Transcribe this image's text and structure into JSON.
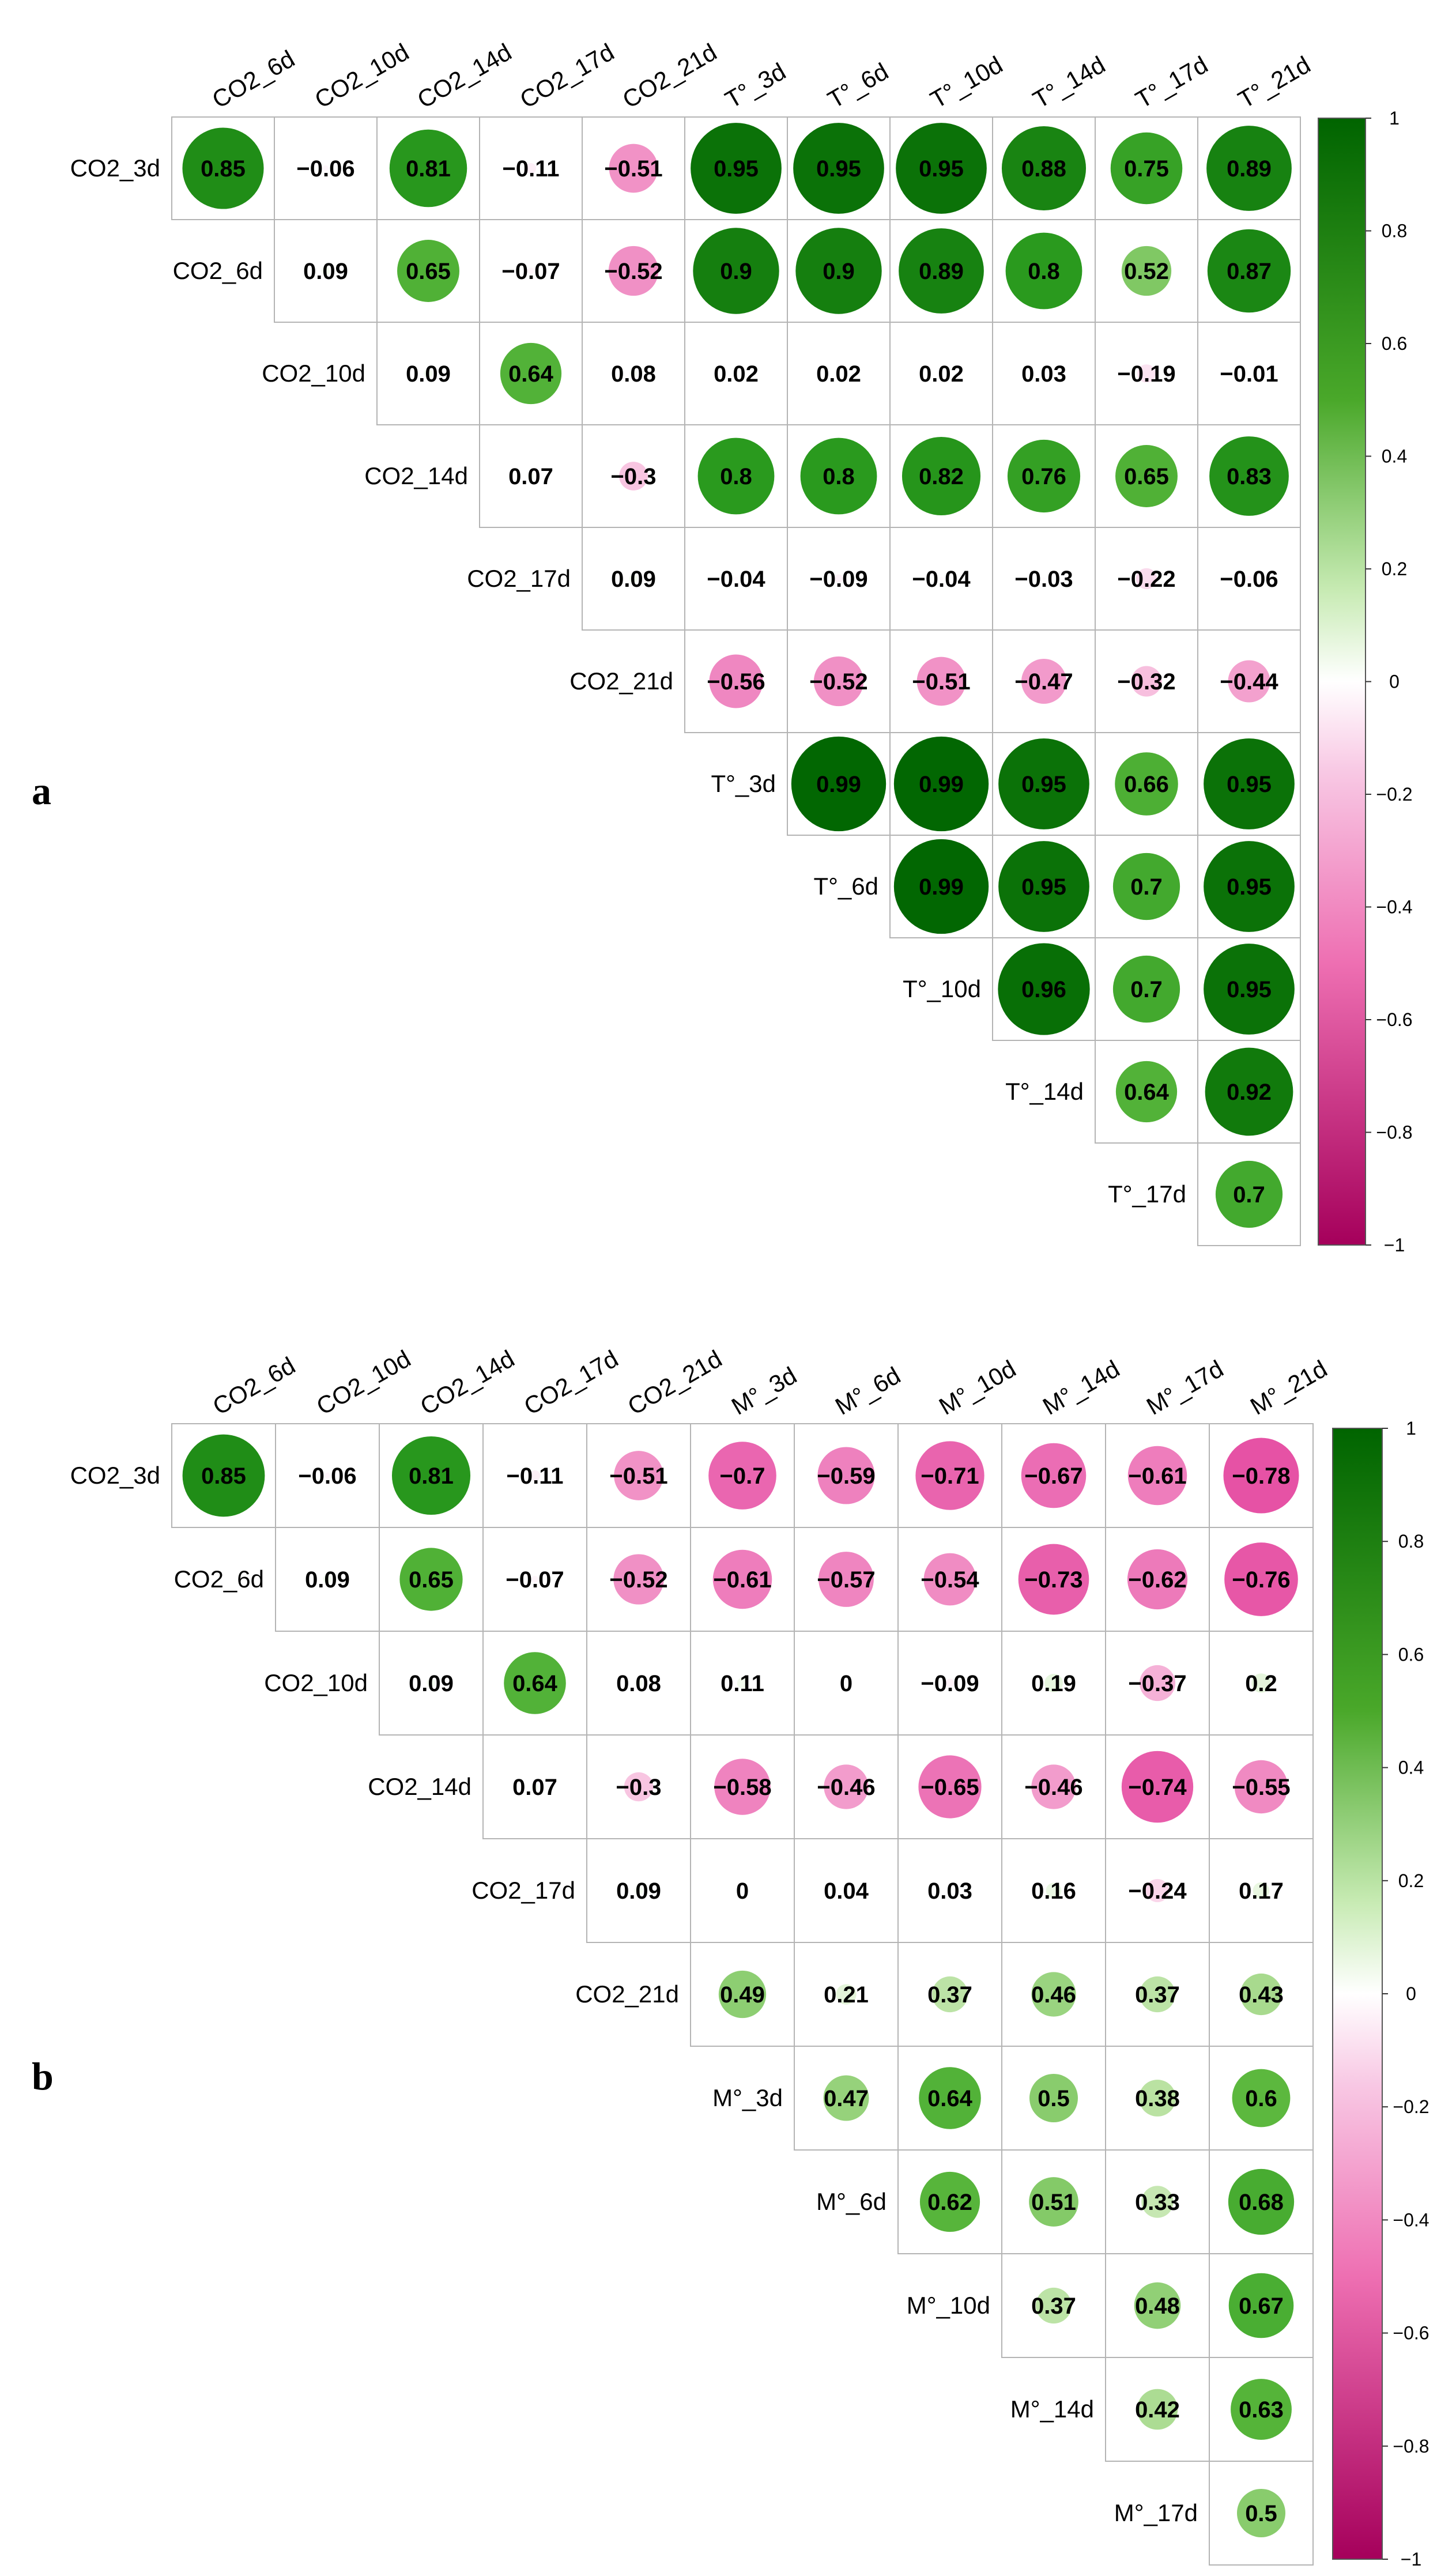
{
  "colors": {
    "positive": "#006400",
    "zero": "#ffffff",
    "negative": "#c51b7d",
    "grid": "#b4b4b4",
    "text": "#000000"
  },
  "chart_data": [
    {
      "panel_label": "a",
      "type": "heatmap",
      "style": "upper-triangle correlation plot, circle size and color by r",
      "columns": [
        "CO2_6d",
        "CO2_10d",
        "CO2_14d",
        "CO2_17d",
        "CO2_21d",
        "T°_3d",
        "T°_6d",
        "T°_10d",
        "T°_14d",
        "T°_17d",
        "T°_21d"
      ],
      "rows": [
        "CO2_3d",
        "CO2_6d",
        "CO2_10d",
        "CO2_14d",
        "CO2_17d",
        "CO2_21d",
        "T°_3d",
        "T°_6d",
        "T°_10d",
        "T°_14d",
        "T°_17d"
      ],
      "values": [
        [
          0.85,
          -0.06,
          0.81,
          -0.11,
          -0.51,
          0.95,
          0.95,
          0.95,
          0.88,
          0.75,
          0.89
        ],
        [
          0.09,
          0.65,
          -0.07,
          -0.52,
          0.9,
          0.9,
          0.89,
          0.8,
          0.52,
          0.87
        ],
        [
          0.09,
          0.64,
          0.08,
          0.02,
          0.02,
          0.02,
          0.03,
          -0.19,
          -0.01
        ],
        [
          0.07,
          -0.3,
          0.8,
          0.8,
          0.82,
          0.76,
          0.65,
          0.83
        ],
        [
          0.09,
          -0.04,
          -0.09,
          -0.04,
          -0.03,
          -0.22,
          -0.06
        ],
        [
          -0.56,
          -0.52,
          -0.51,
          -0.47,
          -0.32,
          -0.44
        ],
        [
          0.99,
          0.99,
          0.95,
          0.66,
          0.95
        ],
        [
          0.99,
          0.95,
          0.7,
          0.95
        ],
        [
          0.96,
          0.7,
          0.95
        ],
        [
          0.64,
          0.92
        ],
        [
          0.7
        ]
      ],
      "value_labels": [
        [
          "0.85",
          "−0.06",
          "0.81",
          "−0.11",
          "−0.51",
          "0.95",
          "0.95",
          "0.95",
          "0.88",
          "0.75",
          "0.89"
        ],
        [
          "0.09",
          "0.65",
          "−0.07",
          "−0.52",
          "0.9",
          "0.9",
          "0.89",
          "0.8",
          "0.52",
          "0.87"
        ],
        [
          "0.09",
          "0.64",
          "0.08",
          "0.02",
          "0.02",
          "0.02",
          "0.03",
          "−0.19",
          "−0.01"
        ],
        [
          "0.07",
          "−0.3",
          "0.8",
          "0.8",
          "0.82",
          "0.76",
          "0.65",
          "0.83"
        ],
        [
          "0.09",
          "−0.04",
          "−0.09",
          "−0.04",
          "−0.03",
          "−0.22",
          "−0.06"
        ],
        [
          "−0.56",
          "−0.52",
          "−0.51",
          "−0.47",
          "−0.32",
          "−0.44"
        ],
        [
          "0.99",
          "0.99",
          "0.95",
          "0.66",
          "0.95"
        ],
        [
          "0.99",
          "0.95",
          "0.7",
          "0.95"
        ],
        [
          "0.96",
          "0.7",
          "0.95"
        ],
        [
          "0.64",
          "0.92"
        ],
        [
          "0.7"
        ]
      ],
      "colorbar": {
        "range": [
          -1,
          1
        ],
        "ticks": [
          1,
          0.8,
          0.6,
          0.4,
          0.2,
          0,
          -0.2,
          -0.4,
          -0.6,
          -0.8,
          -1
        ],
        "tick_labels": [
          "1",
          "0.8",
          "0.6",
          "0.4",
          "0.2",
          "0",
          "−0.2",
          "−0.4",
          "−0.6",
          "−0.8",
          "−1"
        ],
        "placement": "right"
      }
    },
    {
      "panel_label": "b",
      "type": "heatmap",
      "style": "upper-triangle correlation plot, circle size and color by r",
      "columns": [
        "CO2_6d",
        "CO2_10d",
        "CO2_14d",
        "CO2_17d",
        "CO2_21d",
        "M°_3d",
        "M°_6d",
        "M°_10d",
        "M°_14d",
        "M°_17d",
        "M°_21d"
      ],
      "rows": [
        "CO2_3d",
        "CO2_6d",
        "CO2_10d",
        "CO2_14d",
        "CO2_17d",
        "CO2_21d",
        "M°_3d",
        "M°_6d",
        "M°_10d",
        "M°_14d",
        "M°_17d"
      ],
      "values": [
        [
          0.85,
          -0.06,
          0.81,
          -0.11,
          -0.51,
          -0.7,
          -0.59,
          -0.71,
          -0.67,
          -0.61,
          -0.78
        ],
        [
          0.09,
          0.65,
          -0.07,
          -0.52,
          -0.61,
          -0.57,
          -0.54,
          -0.73,
          -0.62,
          -0.76
        ],
        [
          0.09,
          0.64,
          0.08,
          0.11,
          0,
          -0.09,
          0.19,
          -0.37,
          0.2
        ],
        [
          0.07,
          -0.3,
          -0.58,
          -0.46,
          -0.65,
          -0.46,
          -0.74,
          -0.55
        ],
        [
          0.09,
          0,
          0.04,
          0.03,
          0.16,
          -0.24,
          0.17
        ],
        [
          0.49,
          0.21,
          0.37,
          0.46,
          0.37,
          0.43
        ],
        [
          0.47,
          0.64,
          0.5,
          0.38,
          0.6
        ],
        [
          0.62,
          0.51,
          0.33,
          0.68
        ],
        [
          0.37,
          0.48,
          0.67
        ],
        [
          0.42,
          0.63
        ],
        [
          0.5
        ]
      ],
      "value_labels": [
        [
          "0.85",
          "−0.06",
          "0.81",
          "−0.11",
          "−0.51",
          "−0.7",
          "−0.59",
          "−0.71",
          "−0.67",
          "−0.61",
          "−0.78"
        ],
        [
          "0.09",
          "0.65",
          "−0.07",
          "−0.52",
          "−0.61",
          "−0.57",
          "−0.54",
          "−0.73",
          "−0.62",
          "−0.76"
        ],
        [
          "0.09",
          "0.64",
          "0.08",
          "0.11",
          "0",
          "−0.09",
          "0.19",
          "−0.37",
          "0.2"
        ],
        [
          "0.07",
          "−0.3",
          "−0.58",
          "−0.46",
          "−0.65",
          "−0.46",
          "−0.74",
          "−0.55"
        ],
        [
          "0.09",
          "0",
          "0.04",
          "0.03",
          "0.16",
          "−0.24",
          "0.17"
        ],
        [
          "0.49",
          "0.21",
          "0.37",
          "0.46",
          "0.37",
          "0.43"
        ],
        [
          "0.47",
          "0.64",
          "0.5",
          "0.38",
          "0.6"
        ],
        [
          "0.62",
          "0.51",
          "0.33",
          "0.68"
        ],
        [
          "0.37",
          "0.48",
          "0.67"
        ],
        [
          "0.42",
          "0.63"
        ],
        [
          "0.5"
        ]
      ],
      "colorbar": {
        "range": [
          -1,
          1
        ],
        "ticks": [
          1,
          0.8,
          0.6,
          0.4,
          0.2,
          0,
          -0.2,
          -0.4,
          -0.6,
          -0.8,
          -1
        ],
        "tick_labels": [
          "1",
          "0.8",
          "0.6",
          "0.4",
          "0.2",
          "0",
          "−0.2",
          "−0.4",
          "−0.6",
          "−0.8",
          "−1"
        ],
        "placement": "right"
      }
    }
  ]
}
